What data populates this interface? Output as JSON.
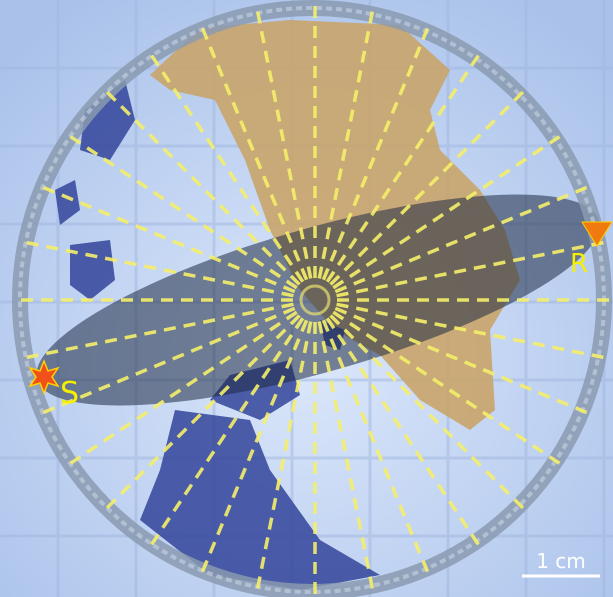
{
  "labels": {
    "source": "S",
    "receiver": "R",
    "scale_bar": "1 cm"
  }
}
